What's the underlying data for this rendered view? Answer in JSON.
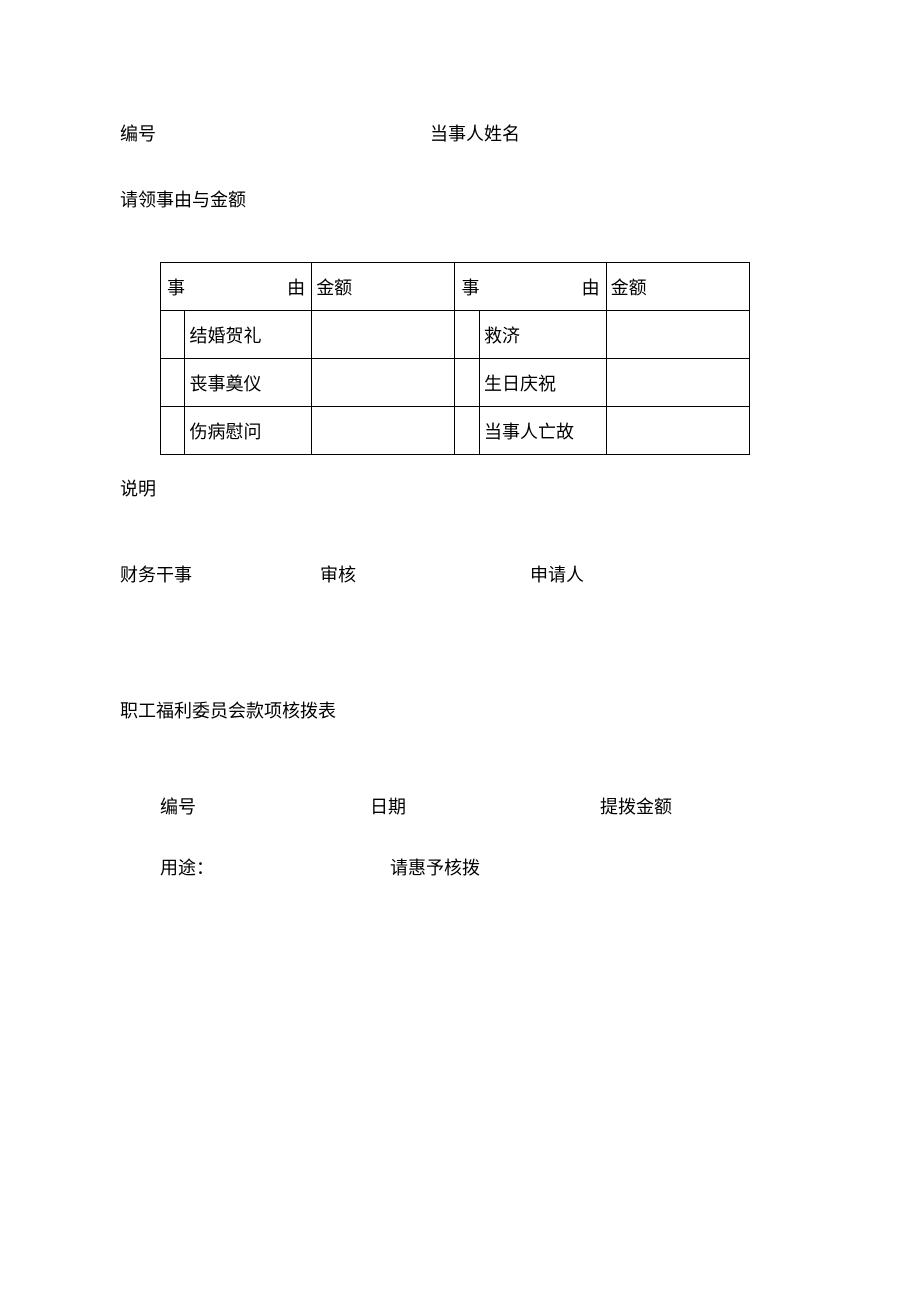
{
  "form1": {
    "number_label": "编号",
    "name_label": "当事人姓名",
    "reason_section_label": "请领事由与金额",
    "table": {
      "header_reason": "事　　　由",
      "header_amount": "金额",
      "rows_left": [
        "结婚贺礼",
        "丧事奠仪",
        "伤病慰问"
      ],
      "rows_right": [
        "救济",
        "生日庆祝",
        "当事人亡故"
      ]
    },
    "explain_label": "说明",
    "signatures": {
      "finance": "财务干事",
      "review": "审核",
      "applicant": "申请人"
    }
  },
  "form2": {
    "title": "职工福利委员会款项核拨表",
    "number_label": "编号",
    "date_label": "日期",
    "amount_label": "提拨金额",
    "usage_label": "用途：",
    "request_label": "请惠予核拨"
  }
}
